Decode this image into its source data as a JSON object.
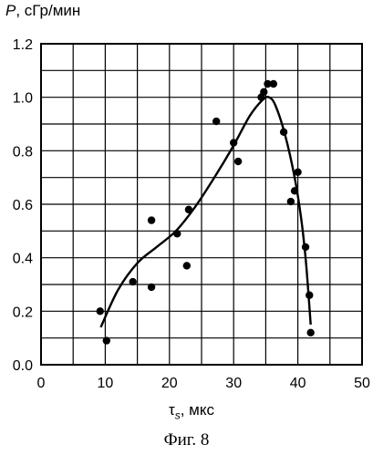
{
  "chart_data": {
    "type": "scatter",
    "ylabel": {
      "symbol": "P",
      "unit": ", сГр/мин"
    },
    "xlabel": {
      "symbol": "τ",
      "subscript": "s",
      "unit": ", мкс"
    },
    "caption": "Фиг. 8",
    "xlim": [
      0,
      50
    ],
    "ylim": [
      0,
      1.2
    ],
    "x_ticks": [
      "0",
      "10",
      "20",
      "30",
      "40",
      "50"
    ],
    "y_ticks": [
      "0.0",
      "0.2",
      "0.4",
      "0.6",
      "0.8",
      "1.0",
      "1.2"
    ],
    "grid": true,
    "points": [
      {
        "x": 9.2,
        "y": 0.2
      },
      {
        "x": 10.2,
        "y": 0.09
      },
      {
        "x": 14.3,
        "y": 0.31
      },
      {
        "x": 17.2,
        "y": 0.29
      },
      {
        "x": 17.2,
        "y": 0.54
      },
      {
        "x": 21.2,
        "y": 0.49
      },
      {
        "x": 22.7,
        "y": 0.37
      },
      {
        "x": 23.0,
        "y": 0.58
      },
      {
        "x": 27.3,
        "y": 0.91
      },
      {
        "x": 30.0,
        "y": 0.83
      },
      {
        "x": 30.7,
        "y": 0.76
      },
      {
        "x": 34.3,
        "y": 1.0
      },
      {
        "x": 34.7,
        "y": 1.02
      },
      {
        "x": 35.3,
        "y": 1.05
      },
      {
        "x": 36.2,
        "y": 1.05
      },
      {
        "x": 37.8,
        "y": 0.87
      },
      {
        "x": 38.9,
        "y": 0.61
      },
      {
        "x": 39.5,
        "y": 0.65
      },
      {
        "x": 40.0,
        "y": 0.72
      },
      {
        "x": 41.2,
        "y": 0.44
      },
      {
        "x": 41.8,
        "y": 0.26
      },
      {
        "x": 42.0,
        "y": 0.12
      }
    ],
    "fit_curve": [
      {
        "x": 9.3,
        "y": 0.14
      },
      {
        "x": 12.0,
        "y": 0.28
      },
      {
        "x": 15.0,
        "y": 0.38
      },
      {
        "x": 18.0,
        "y": 0.44
      },
      {
        "x": 21.0,
        "y": 0.5
      },
      {
        "x": 24.0,
        "y": 0.59
      },
      {
        "x": 27.0,
        "y": 0.7
      },
      {
        "x": 30.0,
        "y": 0.82
      },
      {
        "x": 32.5,
        "y": 0.93
      },
      {
        "x": 34.5,
        "y": 0.99
      },
      {
        "x": 35.5,
        "y": 1.0
      },
      {
        "x": 36.5,
        "y": 0.97
      },
      {
        "x": 38.0,
        "y": 0.86
      },
      {
        "x": 39.5,
        "y": 0.7
      },
      {
        "x": 40.5,
        "y": 0.55
      },
      {
        "x": 41.2,
        "y": 0.4
      },
      {
        "x": 41.7,
        "y": 0.25
      },
      {
        "x": 42.0,
        "y": 0.15
      }
    ]
  }
}
